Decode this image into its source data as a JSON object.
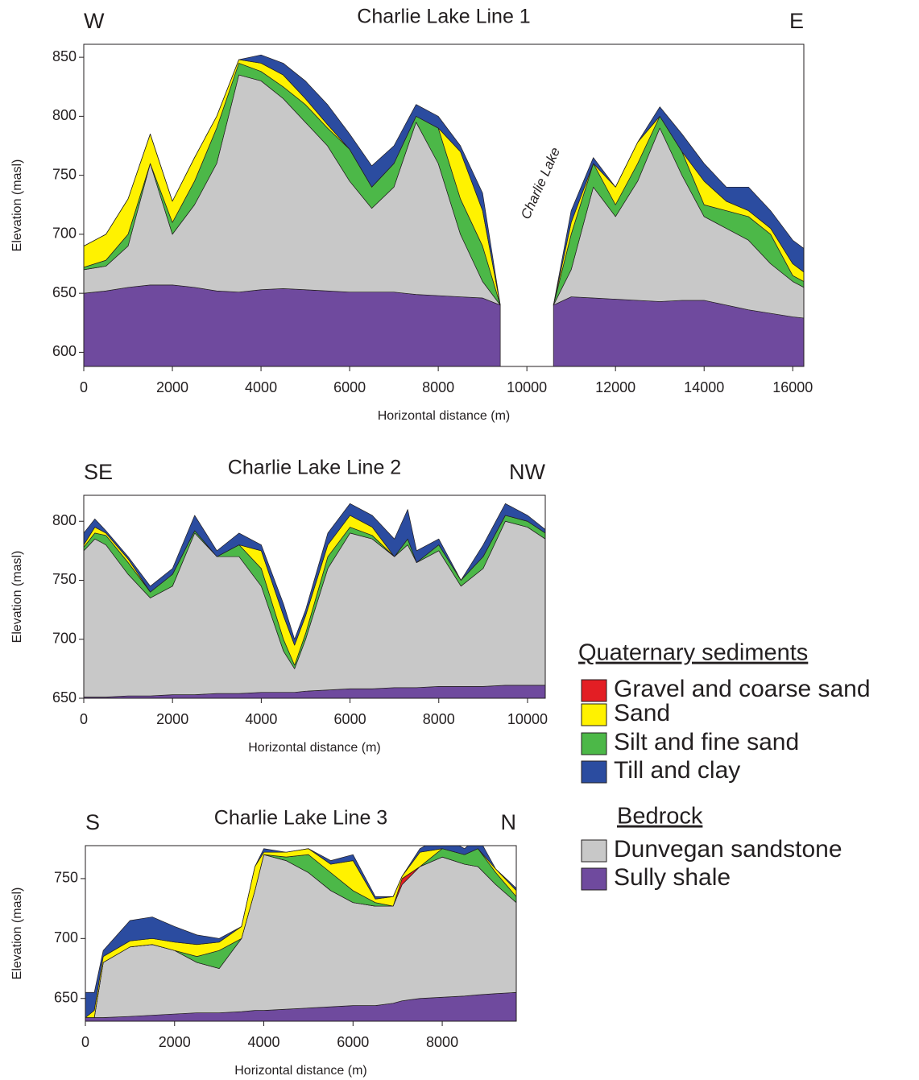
{
  "chart_data": [
    {
      "type": "area",
      "title": "Charlie Lake Line 1",
      "left_label": "W",
      "right_label": "E",
      "annotation": "Charlie Lake",
      "xlabel": "Horizontal distance (m)",
      "ylabel": "Elevation (masl)",
      "xlim": [
        0,
        16250
      ],
      "ylim": [
        588,
        861
      ],
      "xticks": [
        0,
        2000,
        4000,
        6000,
        8000,
        10000,
        12000,
        14000,
        16000
      ],
      "yticks": [
        600,
        650,
        700,
        750,
        800,
        850
      ],
      "x": [
        0,
        500,
        1000,
        1500,
        2000,
        2500,
        3000,
        3500,
        4000,
        4500,
        5000,
        5500,
        6000,
        6500,
        7000,
        7500,
        8000,
        8500,
        9000,
        9400,
        9500,
        10000,
        10500,
        10600,
        11000,
        11500,
        12000,
        12500,
        13000,
        13500,
        14000,
        14500,
        15000,
        15500,
        16000,
        16250
      ],
      "series": [
        {
          "color": "#6f4a9e",
          "values": [
            650,
            652,
            655,
            657,
            657,
            655,
            652,
            651,
            653,
            654,
            653,
            652,
            651,
            651,
            651,
            649,
            648,
            647,
            646,
            640,
            null,
            null,
            null,
            640,
            647,
            646,
            645,
            644,
            643,
            644,
            644,
            640,
            636,
            633,
            630,
            629
          ]
        },
        {
          "color": "#c8c8c8",
          "values": [
            670,
            673,
            690,
            760,
            700,
            725,
            760,
            835,
            830,
            815,
            795,
            775,
            745,
            722,
            740,
            795,
            760,
            700,
            660,
            640,
            null,
            null,
            null,
            640,
            670,
            740,
            715,
            745,
            790,
            750,
            715,
            705,
            695,
            675,
            660,
            655
          ]
        },
        {
          "color": "#4cb848",
          "values": [
            672,
            678,
            700,
            760,
            710,
            745,
            790,
            845,
            838,
            825,
            810,
            790,
            772,
            740,
            760,
            800,
            790,
            730,
            690,
            640,
            null,
            null,
            null,
            640,
            700,
            760,
            725,
            760,
            800,
            770,
            725,
            720,
            715,
            700,
            665,
            660
          ]
        },
        {
          "color": "#fff200",
          "values": [
            690,
            700,
            730,
            785,
            728,
            765,
            800,
            848,
            845,
            835,
            815,
            793,
            772,
            740,
            760,
            800,
            790,
            770,
            720,
            640,
            null,
            null,
            null,
            640,
            710,
            760,
            740,
            778,
            800,
            770,
            745,
            728,
            720,
            705,
            675,
            668
          ]
        },
        {
          "color": "#2b4ca0",
          "values": [
            690,
            700,
            730,
            785,
            728,
            765,
            800,
            848,
            852,
            845,
            830,
            810,
            785,
            758,
            775,
            810,
            800,
            775,
            735,
            640,
            null,
            null,
            null,
            640,
            720,
            765,
            740,
            778,
            808,
            785,
            760,
            740,
            740,
            720,
            695,
            688
          ]
        }
      ]
    },
    {
      "type": "area",
      "title": "Charlie Lake Line 2",
      "left_label": "SE",
      "right_label": "NW",
      "xlabel": "Horizontal distance (m)",
      "ylabel": "Elevation (masl)",
      "xlim": [
        0,
        10400
      ],
      "ylim": [
        650,
        822
      ],
      "xticks": [
        0,
        2000,
        4000,
        6000,
        8000,
        10000
      ],
      "yticks": [
        650,
        700,
        750,
        800
      ],
      "x": [
        0,
        250,
        500,
        1000,
        1500,
        2000,
        2500,
        3000,
        3500,
        4000,
        4500,
        4750,
        5000,
        5500,
        6000,
        6500,
        7000,
        7300,
        7500,
        8000,
        8500,
        9000,
        9500,
        10000,
        10400
      ],
      "series": [
        {
          "color": "#6f4a9e",
          "values": [
            651,
            651,
            651,
            652,
            652,
            653,
            653,
            654,
            654,
            655,
            655,
            655,
            656,
            657,
            658,
            658,
            659,
            659,
            659,
            660,
            660,
            660,
            661,
            661,
            661
          ]
        },
        {
          "color": "#c8c8c8",
          "values": [
            775,
            785,
            780,
            755,
            735,
            745,
            790,
            770,
            770,
            745,
            690,
            675,
            700,
            760,
            790,
            785,
            770,
            780,
            765,
            775,
            745,
            760,
            800,
            795,
            785
          ]
        },
        {
          "color": "#4cb848",
          "values": [
            778,
            790,
            788,
            765,
            740,
            755,
            792,
            770,
            780,
            760,
            700,
            678,
            705,
            770,
            795,
            788,
            770,
            785,
            765,
            780,
            750,
            770,
            805,
            800,
            790
          ]
        },
        {
          "color": "#fff200",
          "values": [
            780,
            795,
            790,
            768,
            740,
            755,
            792,
            770,
            780,
            775,
            720,
            695,
            720,
            780,
            805,
            795,
            770,
            785,
            765,
            780,
            750,
            770,
            805,
            800,
            790
          ]
        },
        {
          "color": "#2b4ca0",
          "values": [
            790,
            802,
            792,
            770,
            745,
            760,
            805,
            775,
            790,
            780,
            730,
            700,
            725,
            790,
            815,
            805,
            785,
            810,
            775,
            785,
            750,
            780,
            815,
            805,
            793
          ]
        }
      ]
    },
    {
      "type": "area",
      "title": "Charlie Lake Line 3",
      "left_label": "S",
      "right_label": "N",
      "xlabel": "Horizontal distance (m)",
      "ylabel": "Elevation (masl)",
      "xlim": [
        0,
        9660
      ],
      "ylim": [
        631,
        777.5
      ],
      "xticks": [
        0,
        2000,
        4000,
        6000,
        8000
      ],
      "yticks": [
        650,
        700,
        750
      ],
      "x": [
        0,
        200,
        400,
        1000,
        1500,
        2000,
        2500,
        3000,
        3500,
        3800,
        4000,
        4500,
        5000,
        5500,
        6000,
        6500,
        6900,
        7100,
        7500,
        8000,
        8500,
        8800,
        9200,
        9660
      ],
      "series": [
        {
          "color": "#6f4a9e",
          "values": [
            634,
            634,
            634,
            635,
            636,
            637,
            638,
            638,
            639,
            640,
            640,
            641,
            642,
            643,
            644,
            644,
            646,
            648,
            650,
            651,
            652,
            653,
            654,
            655
          ]
        },
        {
          "color": "#c8c8c8",
          "values": [
            634,
            634,
            680,
            693,
            695,
            690,
            680,
            675,
            700,
            740,
            770,
            765,
            755,
            740,
            730,
            727,
            727,
            745,
            760,
            768,
            762,
            760,
            745,
            730
          ]
        },
        {
          "color": "#e31e24",
          "values": [
            634,
            634,
            680,
            693,
            695,
            690,
            680,
            675,
            700,
            740,
            770,
            765,
            755,
            740,
            730,
            727,
            727,
            750,
            760,
            768,
            762,
            760,
            745,
            730
          ]
        },
        {
          "color": "#4cb848",
          "values": [
            634,
            634,
            680,
            693,
            695,
            690,
            685,
            690,
            700,
            740,
            770,
            768,
            770,
            755,
            740,
            730,
            727,
            750,
            760,
            775,
            770,
            775,
            755,
            735
          ]
        },
        {
          "color": "#fff200",
          "values": [
            634,
            640,
            685,
            698,
            700,
            697,
            695,
            697,
            710,
            760,
            772,
            772,
            775,
            762,
            765,
            733,
            735,
            752,
            772,
            775,
            770,
            775,
            758,
            740
          ]
        },
        {
          "color": "#2b4ca0",
          "values": [
            655,
            655,
            690,
            715,
            718,
            710,
            703,
            700,
            710,
            760,
            775,
            772,
            775,
            765,
            770,
            735,
            735,
            752,
            775,
            785,
            775,
            785,
            758,
            742
          ]
        }
      ]
    }
  ],
  "legend": [
    {
      "title": "Quaternary sediments",
      "items": [
        {
          "name": "Gravel and coarse sand",
          "color": "#e31e24"
        },
        {
          "name": "Sand",
          "color": "#fff200"
        },
        {
          "name": "Silt and fine sand",
          "color": "#4cb848"
        },
        {
          "name": "Till and clay",
          "color": "#2b4ca0"
        }
      ]
    },
    {
      "title": "Bedrock",
      "items": [
        {
          "name": "Dunvegan sandstone",
          "color": "#c8c8c8"
        },
        {
          "name": "Sully shale",
          "color": "#6f4a9e"
        }
      ]
    }
  ]
}
